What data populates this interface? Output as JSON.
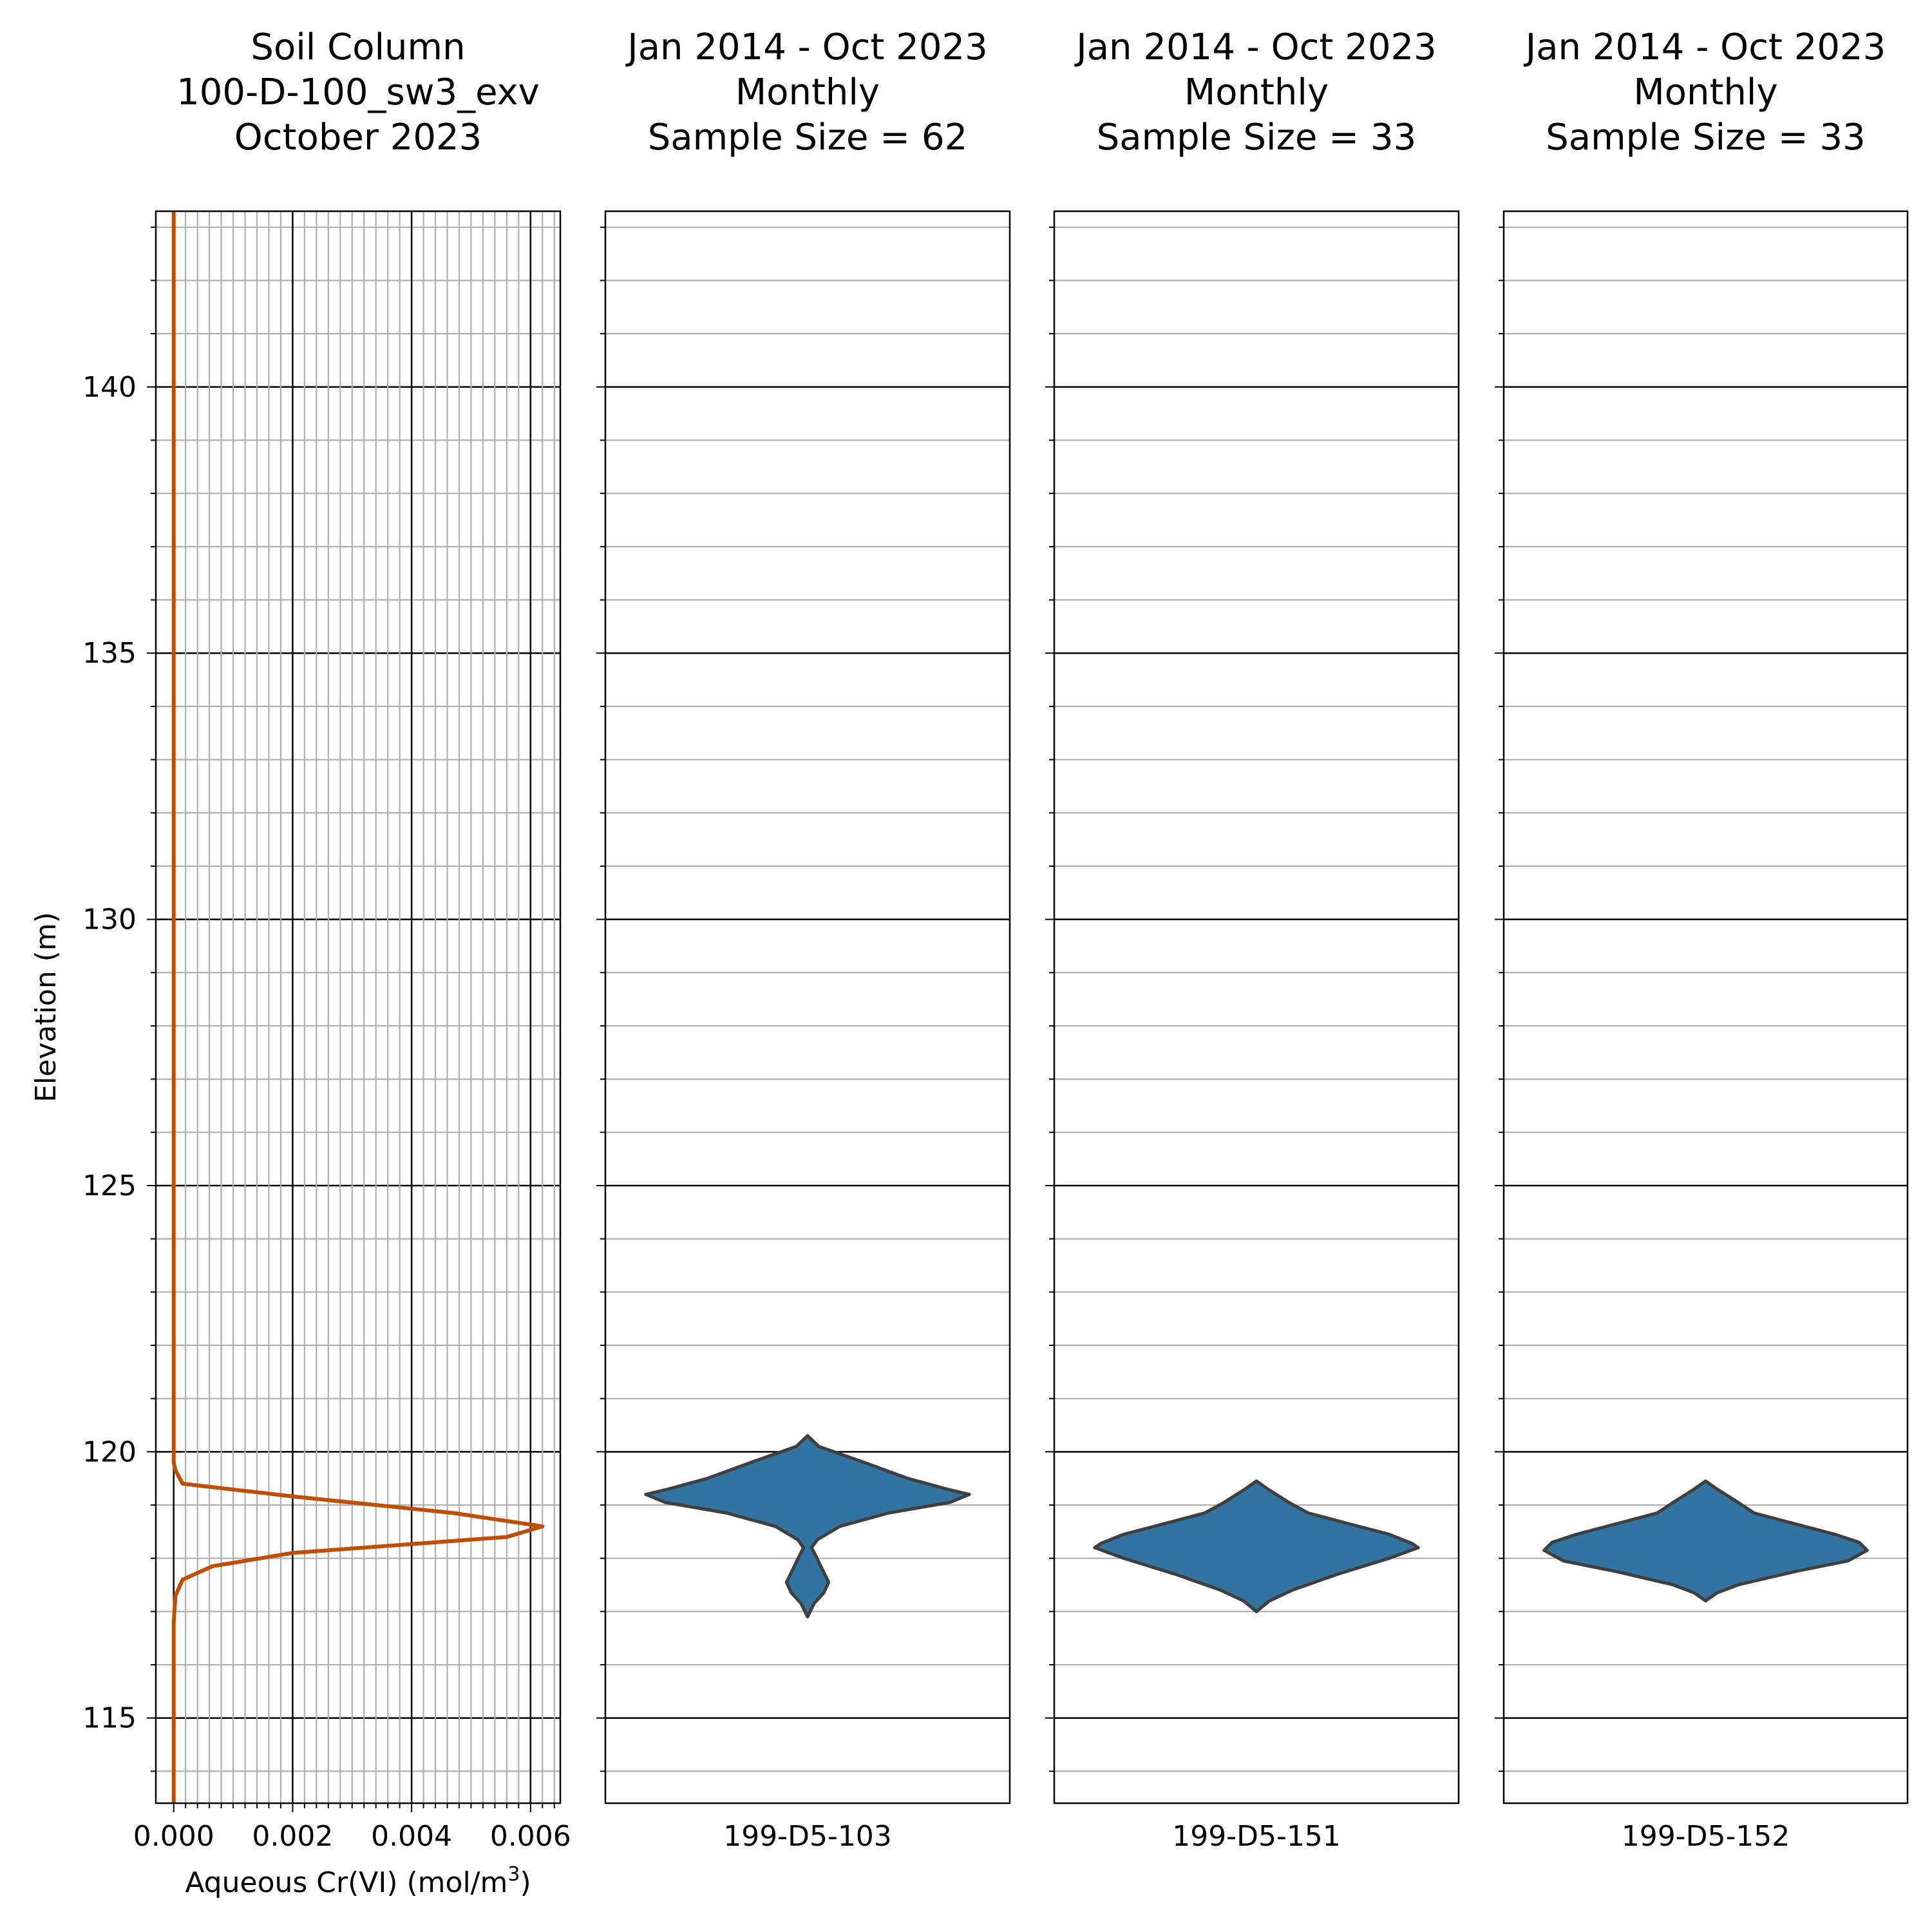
{
  "chart_data": [
    {
      "type": "line",
      "title_lines": [
        "Soil Column",
        "100-D-100_sw3_exv",
        "October 2023"
      ],
      "xlabel": "Aqueous Cr(VI) (mol/m",
      "xlabel_superscript": "3",
      "xlabel_suffix": ")",
      "ylabel": "Elevation (m)",
      "xlim": [
        -0.0003,
        0.0065
      ],
      "ylim": [
        113.4,
        143.3
      ],
      "x_ticks": [
        "0.000",
        "0.002",
        "0.004",
        "0.006"
      ],
      "y_ticks": [
        "115",
        "120",
        "125",
        "130",
        "135",
        "140"
      ],
      "grid": true,
      "line_color": "#C04E01",
      "series": [
        {
          "x": [
            0.0,
            0.0,
            0.0,
            0.0,
            0.0,
            0.0,
            0.0,
            3e-05,
            0.00015,
            0.0021,
            0.0047,
            0.0062,
            0.0056,
            0.002,
            0.00065,
            0.00015,
            3e-05,
            0.0,
            0.0,
            0.0
          ],
          "y": [
            143.3,
            135.5,
            130.0,
            125.0,
            122.0,
            120.0,
            119.8,
            119.65,
            119.4,
            119.15,
            118.85,
            118.6,
            118.4,
            118.1,
            117.85,
            117.6,
            117.3,
            116.8,
            115.0,
            113.4
          ]
        }
      ]
    },
    {
      "type": "violin",
      "title_lines": [
        "Jan 2014 - Oct 2023",
        "Monthly",
        "Sample Size = 62"
      ],
      "category": "199-D5-103",
      "ylim": [
        113.4,
        143.3
      ],
      "color": "#3274A1",
      "edge_color": "#3F3F3F",
      "profile": [
        {
          "y": 120.3,
          "w": 0.0
        },
        {
          "y": 120.1,
          "w": 0.07
        },
        {
          "y": 119.8,
          "w": 0.35
        },
        {
          "y": 119.5,
          "w": 0.62
        },
        {
          "y": 119.3,
          "w": 0.86
        },
        {
          "y": 119.2,
          "w": 1.0
        },
        {
          "y": 119.05,
          "w": 0.88
        },
        {
          "y": 118.85,
          "w": 0.5
        },
        {
          "y": 118.6,
          "w": 0.2
        },
        {
          "y": 118.35,
          "w": 0.06
        },
        {
          "y": 118.2,
          "w": 0.025
        },
        {
          "y": 118.05,
          "w": 0.05
        },
        {
          "y": 117.8,
          "w": 0.09
        },
        {
          "y": 117.55,
          "w": 0.13
        },
        {
          "y": 117.35,
          "w": 0.1
        },
        {
          "y": 117.15,
          "w": 0.04
        },
        {
          "y": 116.9,
          "w": 0.0
        }
      ]
    },
    {
      "type": "violin",
      "title_lines": [
        "Jan 2014 - Oct 2023",
        "Monthly",
        "Sample Size = 33"
      ],
      "category": "199-D5-151",
      "ylim": [
        113.4,
        143.3
      ],
      "color": "#3274A1",
      "edge_color": "#3F3F3F",
      "profile": [
        {
          "y": 119.45,
          "w": 0.0
        },
        {
          "y": 119.3,
          "w": 0.07
        },
        {
          "y": 119.05,
          "w": 0.2
        },
        {
          "y": 118.85,
          "w": 0.32
        },
        {
          "y": 118.65,
          "w": 0.57
        },
        {
          "y": 118.45,
          "w": 0.82
        },
        {
          "y": 118.28,
          "w": 0.96
        },
        {
          "y": 118.2,
          "w": 1.0
        },
        {
          "y": 118.0,
          "w": 0.82
        },
        {
          "y": 117.7,
          "w": 0.5
        },
        {
          "y": 117.4,
          "w": 0.22
        },
        {
          "y": 117.2,
          "w": 0.08
        },
        {
          "y": 117.0,
          "w": 0.0
        }
      ]
    },
    {
      "type": "violin",
      "title_lines": [
        "Jan 2014 - Oct 2023",
        "Monthly",
        "Sample Size = 33"
      ],
      "category": "199-D5-152",
      "ylim": [
        113.4,
        143.3
      ],
      "color": "#3274A1",
      "edge_color": "#3F3F3F",
      "profile": [
        {
          "y": 119.45,
          "w": 0.0
        },
        {
          "y": 119.3,
          "w": 0.07
        },
        {
          "y": 119.05,
          "w": 0.2
        },
        {
          "y": 118.85,
          "w": 0.3
        },
        {
          "y": 118.65,
          "w": 0.55
        },
        {
          "y": 118.45,
          "w": 0.8
        },
        {
          "y": 118.3,
          "w": 0.95
        },
        {
          "y": 118.15,
          "w": 1.0
        },
        {
          "y": 117.95,
          "w": 0.88
        },
        {
          "y": 117.75,
          "w": 0.55
        },
        {
          "y": 117.5,
          "w": 0.2
        },
        {
          "y": 117.35,
          "w": 0.07
        },
        {
          "y": 117.2,
          "w": 0.0
        }
      ]
    }
  ]
}
